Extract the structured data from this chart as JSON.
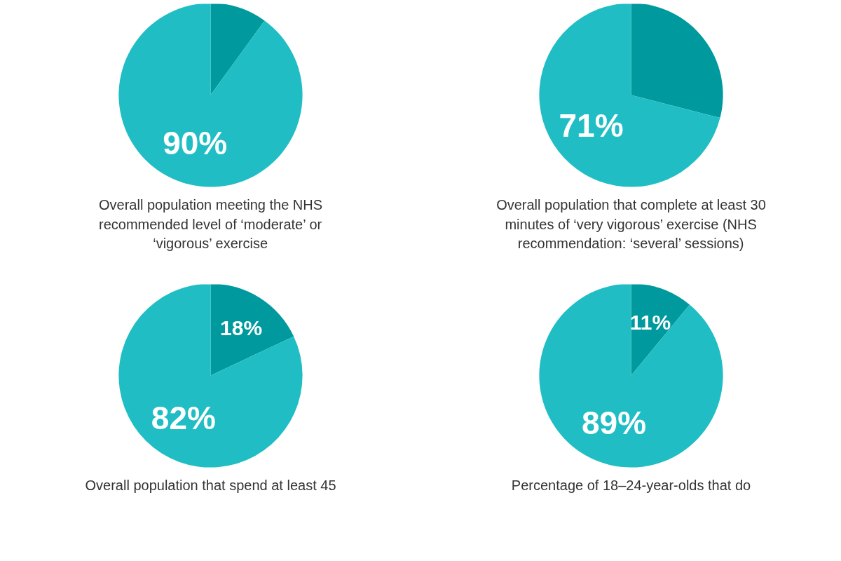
{
  "chart_data": [
    {
      "type": "pie",
      "title": "Overall population meeting the NHS\nrecommended level of ‘moderate’ or\n‘vigorous’ exercise",
      "categories": [
        null,
        null
      ],
      "values": [
        10,
        90
      ],
      "colors": [
        "#00999e",
        "#20bec4"
      ],
      "value_labels": [
        null,
        "90%"
      ]
    },
    {
      "type": "pie",
      "title": "Overall population that complete at least 30\nminutes of ‘very vigorous’ exercise (NHS\nrecommendation: ‘several’ sessions)",
      "categories": [
        null,
        null
      ],
      "values": [
        29,
        71
      ],
      "colors": [
        "#00999e",
        "#20bec4"
      ],
      "value_labels": [
        null,
        "71%"
      ]
    },
    {
      "type": "pie",
      "title": "Overall population that spend at least 45",
      "categories": [
        null,
        null
      ],
      "values": [
        18,
        82
      ],
      "colors": [
        "#00999e",
        "#20bec4"
      ],
      "value_labels": [
        "18%",
        "82%"
      ]
    },
    {
      "type": "pie",
      "title": "Percentage of 18–24-year-olds that do",
      "categories": [
        null,
        null
      ],
      "values": [
        11,
        89
      ],
      "colors": [
        "#00999e",
        "#20bec4"
      ],
      "value_labels": [
        "11%",
        "89%"
      ]
    }
  ]
}
